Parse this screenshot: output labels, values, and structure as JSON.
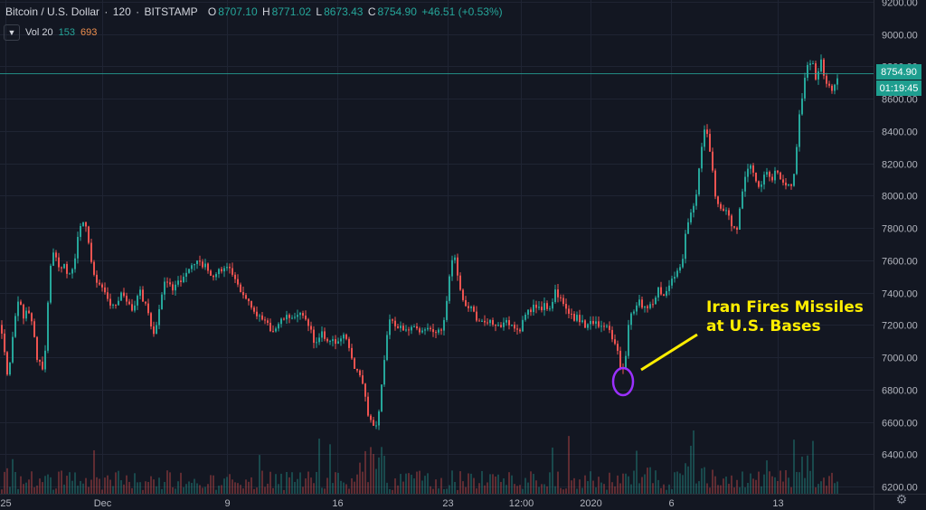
{
  "header": {
    "symbol": "Bitcoin / U.S. Dollar",
    "interval": "120",
    "exchange": "BITSTAMP",
    "open_key": "O",
    "open": "8707.10",
    "high_key": "H",
    "high": "8771.02",
    "low_key": "L",
    "low": "8673.43",
    "close_key": "C",
    "close": "8754.90",
    "change": "+46.51 (+0.53%)"
  },
  "volume_legend": {
    "label": "Vol 20",
    "value_a": "153",
    "value_b": "693",
    "collapse_icon": "chevron-down-icon"
  },
  "price_axis": {
    "current_price": "8754.90",
    "countdown": "01:19:45"
  },
  "annotation": {
    "line1": "Iran Fires Missiles",
    "line2": "at U.S. Bases"
  },
  "settings_icon": "gear-icon",
  "colors": {
    "background": "#131722",
    "up": "#26a69a",
    "down": "#ef5350",
    "annotation": "#ffee00",
    "marker": "#9b30ff",
    "price_line": "#26a69a"
  },
  "chart_data": {
    "type": "candlestick",
    "ylim": [
      6200,
      9200
    ],
    "y_ticks": [
      9200,
      9000,
      8800,
      8600,
      8400,
      8200,
      8000,
      7800,
      7600,
      7400,
      7200,
      7000,
      6800,
      6600,
      6400,
      6200
    ],
    "x_ticks": [
      "25",
      "Dec",
      "9",
      "16",
      "23",
      "12:00",
      "2020",
      "6",
      "13"
    ],
    "grid": true,
    "price_path": [
      [
        0,
        7200
      ],
      [
        4,
        7050
      ],
      [
        8,
        6850
      ],
      [
        12,
        7100
      ],
      [
        16,
        7250
      ],
      [
        20,
        7350
      ],
      [
        25,
        7250
      ],
      [
        30,
        7300
      ],
      [
        35,
        7200
      ],
      [
        40,
        7000
      ],
      [
        45,
        6950
      ],
      [
        48,
        6900
      ],
      [
        50,
        7150
      ],
      [
        54,
        7550
      ],
      [
        58,
        7650
      ],
      [
        62,
        7600
      ],
      [
        66,
        7550
      ],
      [
        70,
        7580
      ],
      [
        74,
        7520
      ],
      [
        78,
        7500
      ],
      [
        82,
        7620
      ],
      [
        86,
        7780
      ],
      [
        90,
        7830
      ],
      [
        94,
        7800
      ],
      [
        98,
        7700
      ],
      [
        102,
        7500
      ],
      [
        106,
        7480
      ],
      [
        110,
        7440
      ],
      [
        114,
        7400
      ],
      [
        118,
        7360
      ],
      [
        122,
        7320
      ],
      [
        126,
        7300
      ],
      [
        130,
        7350
      ],
      [
        134,
        7400
      ],
      [
        138,
        7360
      ],
      [
        142,
        7320
      ],
      [
        146,
        7300
      ],
      [
        150,
        7350
      ],
      [
        154,
        7400
      ],
      [
        158,
        7350
      ],
      [
        162,
        7300
      ],
      [
        166,
        7200
      ],
      [
        170,
        7150
      ],
      [
        174,
        7250
      ],
      [
        178,
        7400
      ],
      [
        182,
        7480
      ],
      [
        186,
        7450
      ],
      [
        190,
        7420
      ],
      [
        194,
        7480
      ],
      [
        198,
        7450
      ],
      [
        202,
        7500
      ],
      [
        206,
        7520
      ],
      [
        210,
        7560
      ],
      [
        214,
        7580
      ],
      [
        218,
        7600
      ],
      [
        222,
        7550
      ],
      [
        226,
        7560
      ],
      [
        230,
        7530
      ],
      [
        234,
        7500
      ],
      [
        238,
        7520
      ],
      [
        242,
        7540
      ],
      [
        246,
        7560
      ],
      [
        250,
        7550
      ],
      [
        254,
        7530
      ],
      [
        258,
        7480
      ],
      [
        262,
        7440
      ],
      [
        266,
        7400
      ],
      [
        270,
        7380
      ],
      [
        274,
        7350
      ],
      [
        278,
        7320
      ],
      [
        282,
        7280
      ],
      [
        286,
        7240
      ],
      [
        290,
        7220
      ],
      [
        294,
        7200
      ],
      [
        298,
        7180
      ],
      [
        302,
        7160
      ],
      [
        306,
        7200
      ],
      [
        310,
        7220
      ],
      [
        314,
        7250
      ],
      [
        318,
        7240
      ],
      [
        322,
        7260
      ],
      [
        326,
        7240
      ],
      [
        330,
        7260
      ],
      [
        334,
        7250
      ],
      [
        338,
        7240
      ],
      [
        342,
        7180
      ],
      [
        346,
        7100
      ],
      [
        350,
        7080
      ],
      [
        354,
        7150
      ],
      [
        358,
        7120
      ],
      [
        362,
        7100
      ],
      [
        366,
        7120
      ],
      [
        370,
        7080
      ],
      [
        374,
        7100
      ],
      [
        378,
        7130
      ],
      [
        382,
        7110
      ],
      [
        386,
        7060
      ],
      [
        390,
        6950
      ],
      [
        394,
        6920
      ],
      [
        398,
        6900
      ],
      [
        402,
        6800
      ],
      [
        406,
        6650
      ],
      [
        410,
        6600
      ],
      [
        414,
        6580
      ],
      [
        418,
        6650
      ],
      [
        422,
        6900
      ],
      [
        426,
        7100
      ],
      [
        430,
        7250
      ],
      [
        434,
        7200
      ],
      [
        438,
        7150
      ],
      [
        442,
        7200
      ],
      [
        446,
        7180
      ],
      [
        450,
        7170
      ],
      [
        454,
        7200
      ],
      [
        458,
        7180
      ],
      [
        462,
        7160
      ],
      [
        466,
        7180
      ],
      [
        470,
        7160
      ],
      [
        474,
        7170
      ],
      [
        478,
        7150
      ],
      [
        482,
        7150
      ],
      [
        486,
        7160
      ],
      [
        490,
        7250
      ],
      [
        494,
        7400
      ],
      [
        498,
        7600
      ],
      [
        502,
        7620
      ],
      [
        506,
        7480
      ],
      [
        510,
        7380
      ],
      [
        514,
        7320
      ],
      [
        518,
        7300
      ],
      [
        522,
        7320
      ],
      [
        526,
        7240
      ],
      [
        530,
        7220
      ],
      [
        534,
        7200
      ],
      [
        538,
        7220
      ],
      [
        542,
        7240
      ],
      [
        546,
        7200
      ],
      [
        550,
        7190
      ],
      [
        554,
        7200
      ],
      [
        558,
        7220
      ],
      [
        562,
        7210
      ],
      [
        566,
        7200
      ],
      [
        570,
        7180
      ],
      [
        574,
        7170
      ],
      [
        578,
        7230
      ],
      [
        582,
        7300
      ],
      [
        586,
        7280
      ],
      [
        590,
        7320
      ],
      [
        594,
        7300
      ],
      [
        598,
        7310
      ],
      [
        602,
        7320
      ],
      [
        606,
        7300
      ],
      [
        610,
        7340
      ],
      [
        614,
        7420
      ],
      [
        618,
        7360
      ],
      [
        622,
        7320
      ],
      [
        626,
        7300
      ],
      [
        630,
        7260
      ],
      [
        634,
        7240
      ],
      [
        638,
        7250
      ],
      [
        642,
        7220
      ],
      [
        646,
        7200
      ],
      [
        650,
        7220
      ],
      [
        654,
        7200
      ],
      [
        658,
        7230
      ],
      [
        662,
        7200
      ],
      [
        666,
        7190
      ],
      [
        670,
        7180
      ],
      [
        674,
        7150
      ],
      [
        678,
        7100
      ],
      [
        682,
        7020
      ],
      [
        686,
        6900
      ],
      [
        690,
        6950
      ],
      [
        694,
        7200
      ],
      [
        698,
        7280
      ],
      [
        702,
        7320
      ],
      [
        706,
        7340
      ],
      [
        710,
        7320
      ],
      [
        714,
        7300
      ],
      [
        718,
        7320
      ],
      [
        722,
        7350
      ],
      [
        726,
        7420
      ],
      [
        730,
        7400
      ],
      [
        734,
        7380
      ],
      [
        738,
        7440
      ],
      [
        742,
        7480
      ],
      [
        746,
        7520
      ],
      [
        750,
        7540
      ],
      [
        754,
        7620
      ],
      [
        758,
        7800
      ],
      [
        762,
        7900
      ],
      [
        766,
        7950
      ],
      [
        770,
        8050
      ],
      [
        774,
        8250
      ],
      [
        778,
        8400
      ],
      [
        782,
        8380
      ],
      [
        786,
        8200
      ],
      [
        790,
        8000
      ],
      [
        794,
        7950
      ],
      [
        798,
        7900
      ],
      [
        802,
        7900
      ],
      [
        806,
        7850
      ],
      [
        810,
        7800
      ],
      [
        814,
        7780
      ],
      [
        818,
        7950
      ],
      [
        822,
        8100
      ],
      [
        826,
        8150
      ],
      [
        830,
        8200
      ],
      [
        834,
        8100
      ],
      [
        838,
        8050
      ],
      [
        842,
        8100
      ],
      [
        846,
        8150
      ],
      [
        850,
        8100
      ],
      [
        854,
        8120
      ],
      [
        858,
        8150
      ],
      [
        862,
        8100
      ],
      [
        866,
        8080
      ],
      [
        870,
        8070
      ],
      [
        874,
        8080
      ],
      [
        878,
        8130
      ],
      [
        882,
        8450
      ],
      [
        886,
        8600
      ],
      [
        890,
        8750
      ],
      [
        894,
        8850
      ],
      [
        898,
        8800
      ],
      [
        902,
        8700
      ],
      [
        906,
        8850
      ],
      [
        910,
        8750
      ],
      [
        914,
        8700
      ],
      [
        918,
        8640
      ],
      [
        922,
        8700
      ],
      [
        926,
        8755
      ]
    ]
  }
}
